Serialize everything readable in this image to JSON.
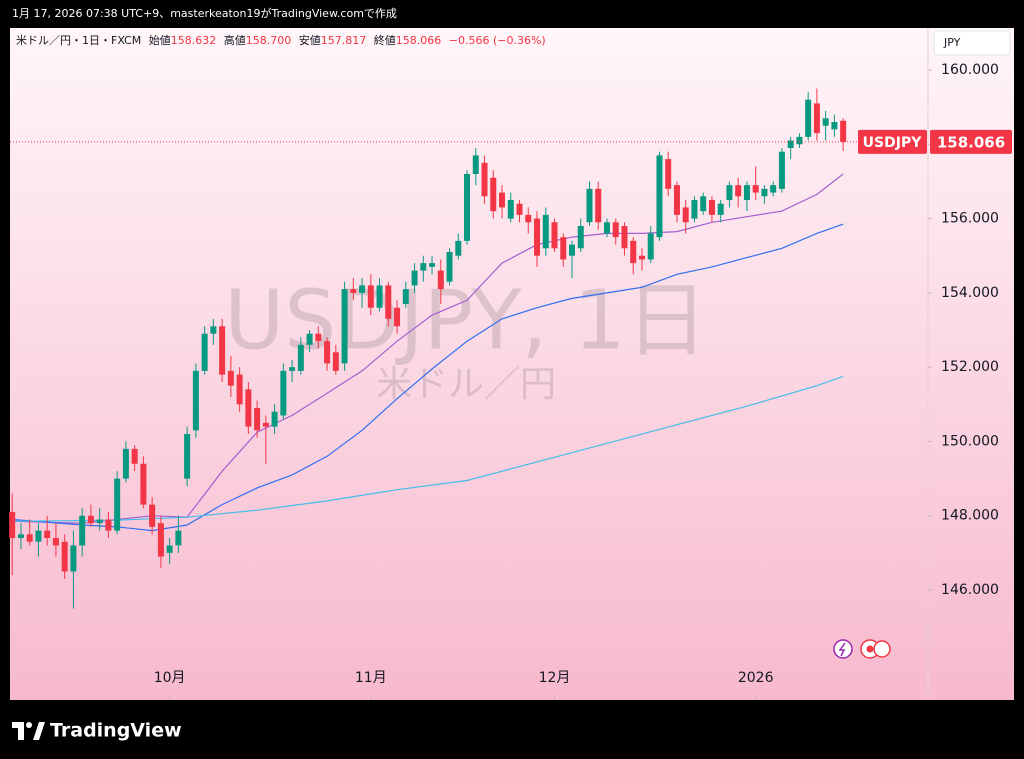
{
  "header": {
    "caption": "1月 17, 2026 07:38 UTC+9、masterkeaton19がTradingView.comで作成"
  },
  "chart_data": {
    "type": "candlestick",
    "symbol_title": "米ドル／円・1日・FXCM",
    "ohlc_names": {
      "open": "始値",
      "high": "高値",
      "low": "安値",
      "close": "終値"
    },
    "ohlc_labels": {
      "open": "158.632",
      "high": "158.700",
      "low": "157.817",
      "close": "158.066"
    },
    "change_label": "−0.566 (−0.36%)",
    "currency": "JPY",
    "ticker": "USDJPY",
    "watermark": "USDJPY, 1日",
    "watermark_sub": "米ドル／円",
    "up_color": "#089981",
    "down_color": "#f23645",
    "grid": false,
    "open": [
      148.1,
      147.4,
      147.5,
      147.3,
      147.6,
      147.4,
      147.3,
      146.5,
      147.2,
      148.0,
      147.8,
      147.9,
      147.6,
      149.0,
      149.8,
      149.4,
      148.3,
      147.8,
      147.0,
      147.2,
      149.0,
      150.3,
      151.9,
      152.9,
      153.1,
      151.9,
      151.8,
      151.4,
      150.9,
      150.5,
      150.4,
      150.7,
      151.9,
      151.9,
      152.6,
      152.9,
      152.7,
      152.4,
      152.1,
      154.1,
      154.0,
      154.2,
      153.6,
      154.2,
      153.6,
      153.7,
      154.2,
      154.6,
      154.7,
      154.6,
      154.3,
      155.0,
      155.4,
      157.2,
      157.5,
      157.1,
      156.7,
      156.0,
      156.4,
      156.1,
      156.0,
      155.2,
      155.9,
      155.5,
      155.0,
      155.2,
      155.9,
      156.8,
      155.6,
      155.9,
      155.8,
      155.4,
      155.0,
      154.9,
      155.5,
      157.6,
      156.9,
      156.3,
      156.0,
      156.2,
      156.5,
      156.1,
      156.5,
      156.9,
      156.5,
      156.9,
      156.6,
      156.7,
      156.8,
      157.9,
      158.0,
      158.2,
      159.1,
      158.5,
      158.4,
      158.632
    ],
    "high": [
      148.6,
      147.8,
      147.9,
      147.8,
      148.0,
      147.8,
      147.5,
      147.6,
      148.2,
      148.3,
      148.2,
      148.1,
      149.2,
      150.0,
      149.9,
      149.6,
      148.5,
      148.0,
      147.4,
      148.0,
      150.4,
      152.1,
      153.1,
      153.3,
      153.3,
      152.3,
      152.0,
      151.6,
      151.1,
      150.7,
      151.0,
      152.1,
      152.2,
      152.8,
      153.0,
      153.1,
      152.8,
      152.6,
      154.3,
      154.4,
      154.4,
      154.5,
      154.4,
      154.3,
      153.8,
      154.3,
      154.8,
      155.0,
      155.0,
      154.9,
      155.2,
      155.6,
      157.3,
      157.9,
      157.7,
      157.3,
      156.9,
      156.7,
      156.5,
      156.3,
      156.2,
      156.3,
      156.0,
      155.6,
      155.4,
      156.0,
      157.0,
      157.0,
      156.0,
      156.0,
      155.9,
      155.5,
      155.2,
      155.8,
      157.8,
      157.8,
      157.0,
      156.5,
      156.6,
      156.7,
      156.6,
      156.5,
      157.0,
      157.1,
      157.0,
      157.4,
      156.9,
      157.0,
      157.9,
      158.2,
      158.3,
      159.4,
      159.5,
      158.9,
      158.8,
      158.7
    ],
    "low": [
      146.4,
      147.1,
      147.2,
      146.9,
      147.2,
      146.9,
      146.3,
      145.5,
      146.9,
      147.7,
      147.6,
      147.4,
      147.5,
      148.9,
      149.2,
      148.2,
      147.5,
      146.6,
      146.7,
      147.0,
      148.8,
      150.1,
      151.8,
      152.6,
      151.6,
      151.2,
      150.8,
      150.2,
      150.1,
      149.4,
      150.2,
      150.6,
      151.6,
      151.8,
      152.4,
      152.5,
      151.9,
      151.8,
      151.9,
      153.8,
      153.6,
      153.4,
      153.5,
      153.1,
      152.9,
      153.6,
      154.0,
      154.3,
      154.5,
      153.7,
      154.2,
      154.9,
      155.3,
      156.9,
      156.4,
      156.0,
      156.0,
      155.9,
      155.9,
      155.6,
      154.7,
      155.0,
      155.1,
      154.7,
      154.4,
      155.1,
      155.8,
      155.7,
      155.5,
      155.3,
      155.0,
      154.5,
      154.6,
      154.8,
      155.4,
      156.6,
      155.9,
      155.6,
      155.9,
      156.1,
      155.9,
      155.9,
      156.3,
      156.3,
      156.2,
      156.5,
      156.4,
      156.6,
      156.7,
      157.6,
      157.9,
      158.1,
      158.1,
      158.1,
      158.2,
      157.817
    ],
    "close": [
      147.4,
      147.5,
      147.3,
      147.6,
      147.4,
      147.2,
      146.5,
      147.2,
      148.0,
      147.8,
      147.9,
      147.6,
      149.0,
      149.8,
      149.4,
      148.3,
      147.7,
      146.9,
      147.2,
      147.6,
      150.2,
      151.9,
      152.9,
      153.1,
      151.8,
      151.5,
      151.0,
      150.4,
      150.3,
      150.4,
      150.8,
      151.9,
      152.0,
      152.6,
      152.9,
      152.7,
      152.1,
      151.9,
      154.1,
      154.0,
      154.2,
      153.6,
      154.2,
      153.3,
      153.1,
      154.1,
      154.6,
      154.8,
      154.8,
      154.1,
      155.1,
      155.4,
      157.2,
      157.7,
      156.6,
      156.2,
      156.3,
      156.5,
      156.1,
      155.9,
      155.0,
      156.1,
      155.2,
      154.9,
      155.3,
      155.8,
      156.8,
      155.9,
      155.9,
      155.5,
      155.2,
      154.8,
      154.9,
      155.6,
      157.7,
      156.8,
      156.1,
      155.9,
      156.5,
      156.6,
      156.1,
      156.4,
      156.9,
      156.6,
      156.9,
      156.7,
      156.8,
      156.9,
      157.8,
      158.1,
      158.2,
      159.2,
      158.3,
      158.7,
      158.6,
      158.066
    ],
    "moving_averages": [
      {
        "color": "#a35fd0",
        "x": [
          0,
          8,
          12,
          16,
          20,
          24,
          28,
          32,
          36,
          40,
          44,
          48,
          52,
          56,
          60,
          64,
          68,
          72,
          76,
          80,
          84,
          88,
          92,
          95
        ],
        "values": [
          147.85,
          147.8,
          147.9,
          148.0,
          147.96,
          149.2,
          150.25,
          150.7,
          151.3,
          151.9,
          152.7,
          153.4,
          153.8,
          154.8,
          155.3,
          155.5,
          155.6,
          155.6,
          155.65,
          155.9,
          156.05,
          156.2,
          156.65,
          157.2
        ]
      },
      {
        "color": "#2f6fef",
        "x": [
          0,
          8,
          12,
          16,
          20,
          24,
          28,
          32,
          36,
          40,
          44,
          48,
          52,
          56,
          60,
          64,
          68,
          72,
          76,
          80,
          84,
          88,
          92,
          95
        ],
        "values": [
          147.9,
          147.75,
          147.7,
          147.6,
          147.75,
          148.3,
          148.75,
          149.1,
          149.6,
          150.3,
          151.15,
          151.95,
          152.7,
          153.3,
          153.6,
          153.85,
          154.0,
          154.15,
          154.5,
          154.7,
          154.95,
          155.2,
          155.6,
          155.85
        ]
      },
      {
        "color": "#45bde6",
        "x": [
          0,
          12,
          20,
          28,
          36,
          44,
          52,
          60,
          68,
          76,
          84,
          92,
          95
        ],
        "values": [
          147.85,
          147.88,
          147.96,
          148.15,
          148.4,
          148.7,
          148.95,
          149.45,
          149.95,
          150.45,
          150.95,
          151.5,
          151.75
        ]
      }
    ],
    "xlim": [
      -0.25,
      104.7
    ],
    "ylim": [
      143.04,
      161.13
    ],
    "yticks": [
      {
        "value": 146,
        "label": "146.000"
      },
      {
        "value": 148,
        "label": "148.000"
      },
      {
        "value": 150,
        "label": "150.000"
      },
      {
        "value": 152,
        "label": "152.000"
      },
      {
        "value": 154,
        "label": "154.000"
      },
      {
        "value": 156,
        "label": "156.000"
      },
      {
        "value": 158,
        "label": "158.000"
      },
      {
        "value": 160,
        "label": "160.000"
      }
    ],
    "xticks": [
      {
        "value": 18,
        "label": "10月"
      },
      {
        "value": 41,
        "label": "11月"
      },
      {
        "value": 62,
        "label": "12月"
      },
      {
        "value": 85,
        "label": "2026"
      }
    ]
  },
  "footer": {
    "brand": "TradingView"
  }
}
